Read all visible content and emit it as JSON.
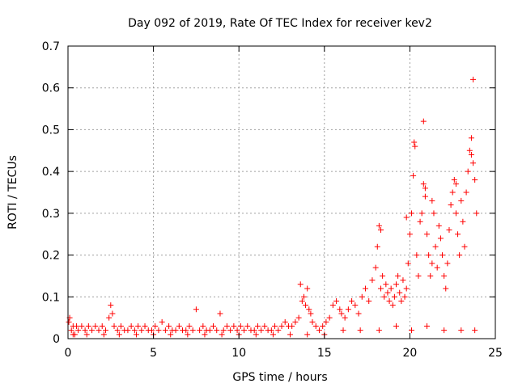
{
  "chart_data": {
    "type": "scatter",
    "title": "Day 092 of 2019, Rate Of TEC Index for receiver kev2",
    "xlabel": "GPS time / hours",
    "ylabel": "ROTI / TECUs",
    "xlim": [
      0,
      25
    ],
    "ylim": [
      0,
      0.7
    ],
    "xticks": [
      0,
      5,
      10,
      15,
      20,
      25
    ],
    "yticks": [
      0,
      0.1,
      0.2,
      0.3,
      0.4,
      0.5,
      0.6,
      0.7
    ],
    "xtick_labels": [
      "0",
      "5",
      "10",
      "15",
      "20",
      "25"
    ],
    "ytick_labels": [
      "0",
      "0.1",
      "0.2",
      "0.3",
      "0.4",
      "0.5",
      "0.6",
      "0.7"
    ],
    "grid": true,
    "marker": "+",
    "color": "#ff0000",
    "series": [
      {
        "name": "ROTI",
        "x": [
          0.05,
          0.1,
          0.2,
          0.3,
          0.4,
          0.5,
          0.6,
          0.8,
          1.0,
          1.2,
          1.4,
          1.6,
          1.8,
          2.0,
          2.2,
          2.4,
          2.5,
          2.6,
          2.7,
          2.9,
          3.1,
          3.3,
          3.5,
          3.7,
          3.9,
          4.1,
          4.3,
          4.5,
          4.7,
          4.9,
          5.1,
          5.3,
          5.5,
          5.7,
          5.9,
          6.1,
          6.3,
          6.5,
          6.7,
          6.9,
          7.1,
          7.3,
          7.5,
          7.7,
          7.9,
          8.1,
          8.3,
          8.5,
          8.7,
          8.9,
          9.1,
          9.3,
          9.5,
          9.7,
          9.9,
          10.1,
          10.3,
          10.5,
          10.7,
          10.9,
          11.1,
          11.3,
          11.5,
          11.7,
          11.9,
          12.1,
          12.3,
          12.5,
          12.7,
          12.9,
          13.1,
          13.3,
          13.5,
          13.6,
          13.7,
          13.8,
          13.9,
          14.0,
          14.1,
          14.2,
          14.3,
          14.5,
          14.7,
          14.9,
          15.1,
          15.3,
          15.5,
          15.7,
          15.9,
          16.0,
          16.2,
          16.4,
          16.6,
          16.8,
          17.0,
          17.2,
          17.4,
          17.6,
          17.8,
          18.0,
          18.1,
          18.2,
          18.3,
          18.4,
          18.5,
          18.6,
          18.7,
          18.8,
          18.9,
          19.0,
          19.1,
          19.2,
          19.3,
          19.4,
          19.5,
          19.6,
          19.7,
          19.8,
          19.9,
          20.0,
          20.1,
          20.2,
          20.3,
          20.4,
          20.5,
          20.6,
          20.7,
          20.8,
          20.9,
          21.0,
          21.1,
          21.2,
          21.3,
          21.4,
          21.5,
          21.6,
          21.7,
          21.8,
          21.9,
          22.0,
          22.1,
          22.2,
          22.3,
          22.4,
          22.5,
          22.6,
          22.7,
          22.8,
          22.9,
          23.0,
          23.1,
          23.2,
          23.3,
          23.4,
          23.5,
          23.6,
          23.7,
          23.8,
          23.9,
          0.3,
          1.1,
          2.1,
          3.0,
          4.0,
          5.0,
          6.0,
          7.0,
          8.0,
          9.0,
          10.0,
          11.0,
          12.0,
          13.0,
          14.0,
          15.0,
          16.1,
          17.1,
          18.2,
          19.2,
          20.1,
          21.0,
          22.0,
          23.0,
          23.8,
          20.8,
          20.25,
          23.7,
          22.7,
          21.3,
          19.8,
          18.3,
          20.9,
          23.6
        ],
        "y": [
          0.04,
          0.05,
          0.02,
          0.03,
          0.01,
          0.03,
          0.02,
          0.03,
          0.02,
          0.03,
          0.02,
          0.03,
          0.02,
          0.03,
          0.02,
          0.05,
          0.08,
          0.06,
          0.03,
          0.02,
          0.03,
          0.02,
          0.02,
          0.03,
          0.02,
          0.03,
          0.02,
          0.03,
          0.02,
          0.02,
          0.03,
          0.02,
          0.04,
          0.02,
          0.03,
          0.02,
          0.02,
          0.03,
          0.02,
          0.02,
          0.03,
          0.02,
          0.07,
          0.02,
          0.03,
          0.02,
          0.02,
          0.03,
          0.02,
          0.06,
          0.02,
          0.03,
          0.02,
          0.03,
          0.02,
          0.03,
          0.02,
          0.03,
          0.02,
          0.02,
          0.03,
          0.02,
          0.03,
          0.02,
          0.02,
          0.03,
          0.02,
          0.03,
          0.04,
          0.03,
          0.03,
          0.04,
          0.05,
          0.13,
          0.09,
          0.1,
          0.08,
          0.12,
          0.07,
          0.06,
          0.04,
          0.03,
          0.02,
          0.03,
          0.04,
          0.05,
          0.08,
          0.09,
          0.07,
          0.06,
          0.05,
          0.07,
          0.09,
          0.08,
          0.06,
          0.1,
          0.12,
          0.09,
          0.14,
          0.17,
          0.22,
          0.27,
          0.12,
          0.15,
          0.1,
          0.13,
          0.11,
          0.09,
          0.12,
          0.08,
          0.1,
          0.13,
          0.15,
          0.11,
          0.09,
          0.14,
          0.1,
          0.12,
          0.18,
          0.25,
          0.3,
          0.39,
          0.46,
          0.2,
          0.15,
          0.28,
          0.3,
          0.37,
          0.34,
          0.25,
          0.2,
          0.15,
          0.18,
          0.3,
          0.22,
          0.17,
          0.27,
          0.24,
          0.2,
          0.15,
          0.12,
          0.18,
          0.26,
          0.32,
          0.35,
          0.38,
          0.3,
          0.25,
          0.2,
          0.33,
          0.28,
          0.22,
          0.35,
          0.4,
          0.45,
          0.48,
          0.42,
          0.38,
          0.3,
          0.01,
          0.01,
          0.01,
          0.01,
          0.01,
          0.01,
          0.01,
          0.01,
          0.01,
          0.01,
          0.01,
          0.01,
          0.01,
          0.01,
          0.01,
          0.01,
          0.02,
          0.02,
          0.02,
          0.03,
          0.02,
          0.03,
          0.02,
          0.02,
          0.02,
          0.52,
          0.47,
          0.62,
          0.37,
          0.33,
          0.29,
          0.26,
          0.36,
          0.44
        ]
      }
    ]
  }
}
